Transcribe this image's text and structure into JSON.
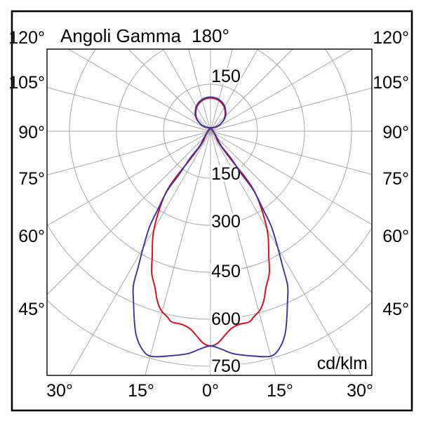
{
  "title": "Angoli Gamma",
  "top_axis_label": "180°",
  "unit_label": "cd/klm",
  "axis_labels": {
    "left": [
      "120°",
      "105°",
      "90°",
      "75°",
      "60°",
      "45°"
    ],
    "right": [
      "120°",
      "105°",
      "90°",
      "75°",
      "60°",
      "45°"
    ],
    "bottom": [
      "30°",
      "15°",
      "0°",
      "15°",
      "30°"
    ],
    "radial": [
      "150",
      "150",
      "300",
      "450",
      "600",
      "750"
    ]
  },
  "colors": {
    "curve_red": "#e60012",
    "curve_blue": "#3733a7",
    "grid": "#a8a8a8",
    "frame": "#000000",
    "background": "#ffffff"
  },
  "chart_data": {
    "type": "line",
    "subtype": "polar-photometric-diagram",
    "title": "Angoli Gamma",
    "unit": "cd/klm",
    "gamma_grid_step_deg": 15,
    "radial_ticks": [
      150,
      300,
      450,
      600,
      750
    ],
    "radial_max": 780,
    "notes": "gamma 0 = straight down, 180 = straight up; curves symmetric about vertical axis; points are ordered traces [gamma_deg, cd_per_klm] for the right half (mirrored to the left). Both curves have a small upward lobe (max ~110 cd/klm at 180deg) and a main downward lobe peaking ~745 (blue) at +/-15deg and ~685 at 0deg with a red shoulder ~620 near 10deg.",
    "series": [
      {
        "name": "curve-blue",
        "color": "#3733a7",
        "points": [
          [
            180,
            109
          ],
          [
            170,
            107
          ],
          [
            160,
            101
          ],
          [
            150,
            91
          ],
          [
            140,
            76
          ],
          [
            135,
            67
          ],
          [
            130,
            56
          ],
          [
            126,
            40
          ],
          [
            125,
            34
          ],
          [
            128,
            25
          ],
          [
            132,
            20
          ],
          [
            140,
            16
          ],
          [
            152,
            13
          ],
          [
            166,
            11.5
          ],
          [
            178,
            11
          ],
          [
            90,
            9
          ],
          [
            55,
            18
          ],
          [
            42,
            34
          ],
          [
            36,
            60
          ],
          [
            37,
            110
          ],
          [
            36,
            170
          ],
          [
            36,
            235
          ],
          [
            34,
            300
          ],
          [
            32.5,
            362
          ],
          [
            30,
            430
          ],
          [
            28,
            492
          ],
          [
            26.5,
            552
          ],
          [
            24,
            603
          ],
          [
            22,
            649
          ],
          [
            20,
            693
          ],
          [
            17.5,
            728
          ],
          [
            15,
            743
          ],
          [
            11,
            731
          ],
          [
            6,
            714
          ],
          [
            3,
            697
          ],
          [
            0,
            685
          ]
        ]
      },
      {
        "name": "curve-red",
        "color": "#e60012",
        "points": [
          [
            180,
            106
          ],
          [
            170,
            104
          ],
          [
            160,
            98
          ],
          [
            150,
            88
          ],
          [
            140,
            73
          ],
          [
            135,
            64
          ],
          [
            130,
            55
          ],
          [
            125,
            38
          ],
          [
            124,
            32
          ],
          [
            127,
            24
          ],
          [
            131,
            19.5
          ],
          [
            138,
            16
          ],
          [
            150,
            13
          ],
          [
            164,
            11
          ],
          [
            178,
            10
          ],
          [
            90,
            8
          ],
          [
            55,
            16
          ],
          [
            40,
            30
          ],
          [
            35,
            52
          ],
          [
            36,
            117
          ],
          [
            37,
            185
          ],
          [
            36,
            242
          ],
          [
            32.5,
            312
          ],
          [
            29,
            378
          ],
          [
            25,
            440
          ],
          [
            22.5,
            490
          ],
          [
            19.5,
            530
          ],
          [
            17.5,
            566
          ],
          [
            15.5,
            592
          ],
          [
            13,
            609
          ],
          [
            11.5,
            621
          ],
          [
            8.5,
            623
          ],
          [
            6,
            633
          ],
          [
            4,
            653
          ],
          [
            2,
            676
          ],
          [
            0,
            685
          ]
        ]
      }
    ]
  }
}
